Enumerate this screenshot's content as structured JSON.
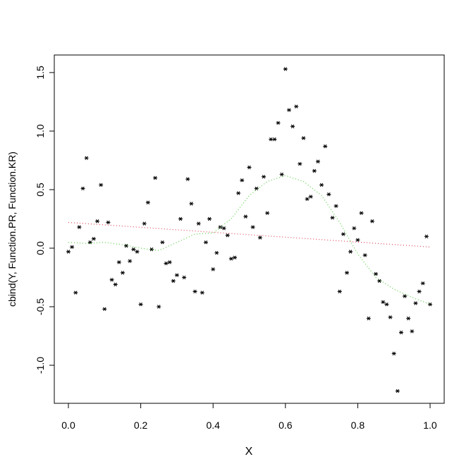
{
  "chart_data": {
    "type": "scatter",
    "xlabel": "X",
    "ylabel": "cbind(Y, Function.PR, Function.KR)",
    "xlim": [
      -0.039,
      1.039
    ],
    "ylim": [
      -1.325,
      1.65
    ],
    "xticks": [
      {
        "value": 0,
        "label": "0.0"
      },
      {
        "value": 0.2,
        "label": "0.2"
      },
      {
        "value": 0.4,
        "label": "0.4"
      },
      {
        "value": 0.6,
        "label": "0.6"
      },
      {
        "value": 0.8,
        "label": "0.8"
      },
      {
        "value": 1,
        "label": "1.0"
      }
    ],
    "yticks": [
      {
        "value": -1,
        "label": "-1.0"
      },
      {
        "value": -0.5,
        "label": "-0.5"
      },
      {
        "value": 0,
        "label": "0.0"
      },
      {
        "value": 0.5,
        "label": "0.5"
      },
      {
        "value": 1,
        "label": "1.0"
      },
      {
        "value": 1.5,
        "label": "1.5"
      }
    ],
    "series": [
      {
        "kind": "points",
        "color": "#000000",
        "x": [
          0,
          0.01,
          0.02,
          0.03,
          0.04,
          0.05,
          0.06,
          0.07,
          0.08,
          0.09,
          0.1,
          0.11,
          0.12,
          0.13,
          0.14,
          0.15,
          0.16,
          0.17,
          0.18,
          0.19,
          0.2,
          0.21,
          0.22,
          0.23,
          0.24,
          0.25,
          0.26,
          0.27,
          0.28,
          0.29,
          0.3,
          0.31,
          0.32,
          0.33,
          0.34,
          0.35,
          0.36,
          0.37,
          0.38,
          0.39,
          0.4,
          0.41,
          0.42,
          0.43,
          0.44,
          0.45,
          0.46,
          0.47,
          0.48,
          0.49,
          0.5,
          0.51,
          0.52,
          0.53,
          0.54,
          0.55,
          0.56,
          0.57,
          0.58,
          0.59,
          0.6,
          0.61,
          0.62,
          0.63,
          0.64,
          0.65,
          0.66,
          0.67,
          0.68,
          0.69,
          0.7,
          0.71,
          0.72,
          0.73,
          0.74,
          0.75,
          0.76,
          0.77,
          0.78,
          0.79,
          0.8,
          0.81,
          0.82,
          0.83,
          0.84,
          0.85,
          0.86,
          0.87,
          0.88,
          0.89,
          0.9,
          0.91,
          0.92,
          0.93,
          0.94,
          0.95,
          0.96,
          0.97,
          0.98,
          0.99,
          1
        ],
        "values": [
          -0.03,
          0.01,
          -0.38,
          0.18,
          0.51,
          0.77,
          0.05,
          0.08,
          0.23,
          0.54,
          -0.52,
          0.22,
          -0.27,
          -0.31,
          -0.12,
          -0.21,
          0.02,
          -0.11,
          -0.01,
          -0.03,
          -0.48,
          0.21,
          0.39,
          -0.01,
          0.6,
          -0.5,
          0.05,
          -0.13,
          -0.12,
          -0.28,
          -0.23,
          0.25,
          -0.25,
          0.59,
          0.38,
          -0.37,
          0.21,
          -0.38,
          0.05,
          0.25,
          -0.18,
          -0.04,
          0.18,
          0.17,
          0.11,
          -0.09,
          -0.08,
          0.47,
          0.58,
          0.27,
          0.69,
          0.18,
          0.51,
          0.09,
          0.61,
          0.3,
          0.93,
          0.93,
          1.07,
          0.63,
          1.53,
          1.18,
          1.04,
          1.21,
          0.72,
          0.94,
          0.42,
          0.44,
          0.66,
          0.74,
          0.54,
          0.87,
          0.46,
          0.26,
          0.36,
          -0.37,
          0.12,
          -0.21,
          -0.03,
          0.17,
          0.07,
          0.3,
          -0.06,
          -0.6,
          0.23,
          -0.22,
          -0.28,
          -0.46,
          -0.48,
          -0.59,
          -0.9,
          -1.22,
          -0.72,
          -0.41,
          -0.6,
          -0.71,
          -0.47,
          -0.37,
          -0.3,
          0.1,
          -0.48
        ]
      },
      {
        "kind": "line",
        "color": "#df536b",
        "x": [
          0,
          1
        ],
        "values": [
          0.22,
          0.01
        ]
      },
      {
        "kind": "line",
        "color": "#61d04f",
        "x": [
          0,
          0.05,
          0.1,
          0.15,
          0.2,
          0.25,
          0.3,
          0.35,
          0.4,
          0.45,
          0.5,
          0.55,
          0.6,
          0.65,
          0.7,
          0.75,
          0.8,
          0.85,
          0.9,
          0.95,
          1
        ],
        "values": [
          0.05,
          0.04,
          0.05,
          0.03,
          0,
          -0.02,
          0.05,
          0.12,
          0.13,
          0.25,
          0.45,
          0.57,
          0.62,
          0.57,
          0.45,
          0.22,
          -0.05,
          -0.25,
          -0.35,
          -0.42,
          -0.48
        ]
      }
    ]
  }
}
